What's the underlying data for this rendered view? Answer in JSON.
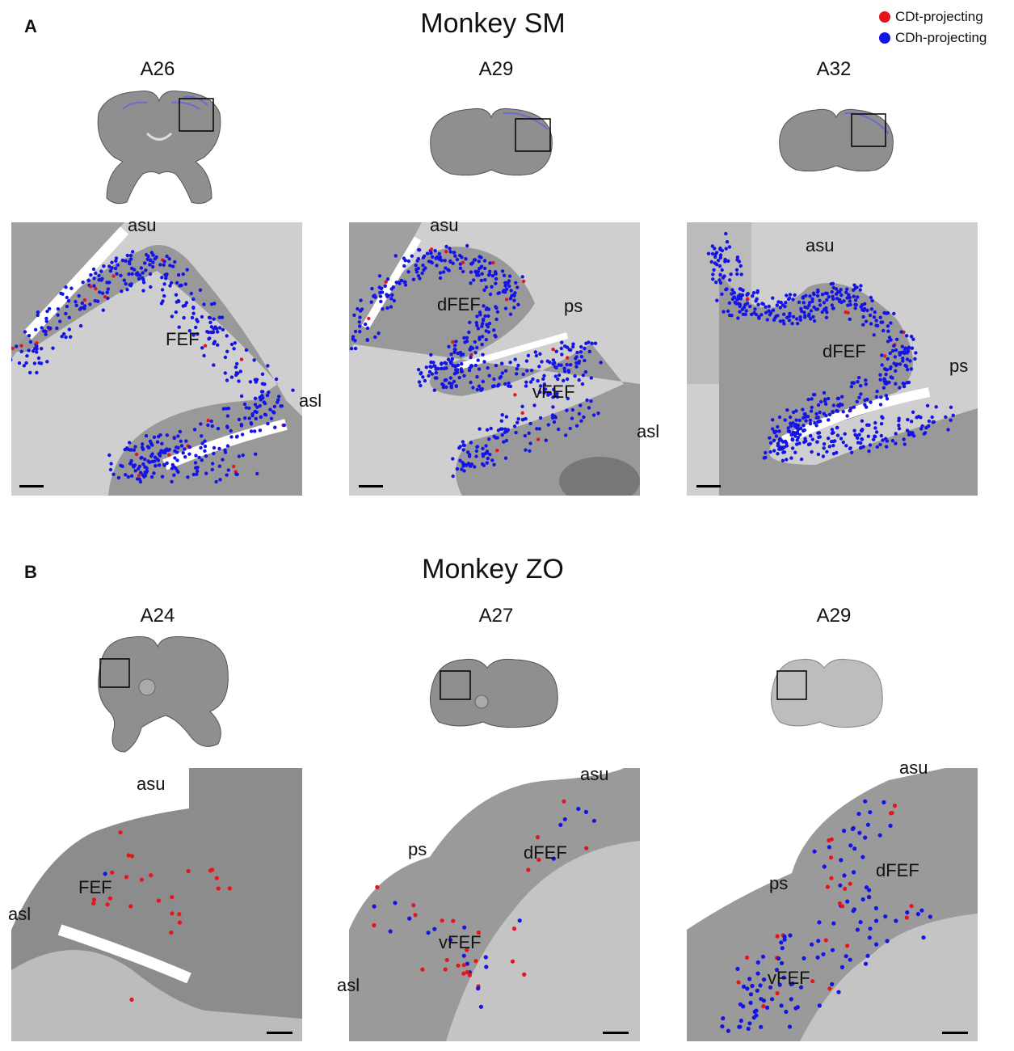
{
  "legend": [
    {
      "label": "CDt-projecting",
      "color": "#e8141b"
    },
    {
      "label": "CDh-projecting",
      "color": "#1414e6"
    }
  ],
  "panels": [
    {
      "letter": "A",
      "title": "Monkey SM",
      "sections": [
        {
          "label": "A26",
          "regions": [
            "asu",
            "FEF",
            "asl"
          ]
        },
        {
          "label": "A29",
          "regions": [
            "asu",
            "dFEF",
            "ps",
            "vFEF",
            "asl"
          ]
        },
        {
          "label": "A32",
          "regions": [
            "asu",
            "dFEF",
            "ps"
          ]
        }
      ]
    },
    {
      "letter": "B",
      "title": "Monkey ZO",
      "sections": [
        {
          "label": "A24",
          "regions": [
            "asu",
            "FEF",
            "asl"
          ]
        },
        {
          "label": "A27",
          "regions": [
            "asu",
            "ps",
            "dFEF",
            "vFEF",
            "asl"
          ]
        },
        {
          "label": "A29",
          "regions": [
            "asu",
            "dFEF",
            "ps",
            "vFEF"
          ]
        }
      ]
    }
  ],
  "colors": {
    "cortex": "#8f8f8f",
    "white_matter": "#cbcbcb",
    "background": "#ffffff"
  }
}
